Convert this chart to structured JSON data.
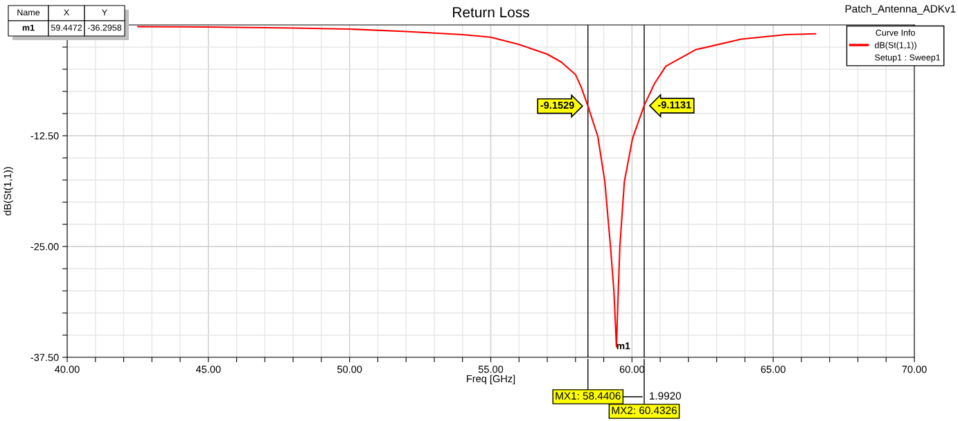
{
  "chart_data": {
    "type": "line",
    "title": "Return Loss",
    "xlabel": "Freq [GHz]",
    "ylabel": "dB(St(1,1))",
    "legend_title": "Curve Info",
    "x": [
      42.5,
      45,
      48,
      50,
      52,
      54,
      55,
      56,
      57,
      57.5,
      58,
      58.2,
      58.44,
      58.79,
      59.04,
      59.24,
      59.36,
      59.45,
      59.49,
      59.57,
      59.73,
      60.02,
      60.43,
      60.8,
      61.2,
      62.25,
      63.87,
      65.45,
      66.5
    ],
    "series": [
      {
        "name": "dB(St(1,1))",
        "color": "#ff0000",
        "values": [
          -0.2,
          -0.23,
          -0.35,
          -0.47,
          -0.74,
          -1.1,
          -1.38,
          -2.2,
          -3.3,
          -4.2,
          -5.6,
          -7.0,
          -9.15,
          -12.58,
          -17.7,
          -25.05,
          -30.0,
          -36.3,
          -32.3,
          -25.05,
          -17.7,
          -12.8,
          -9.11,
          -6.6,
          -4.66,
          -2.8,
          -1.6,
          -1.09,
          -1.0
        ]
      }
    ],
    "xlim": [
      40,
      70
    ],
    "ylim": [
      -37.5,
      0
    ],
    "xticks": [
      {
        "value": 40,
        "label": "40.00"
      },
      {
        "value": 41,
        "label": null
      },
      {
        "value": 42,
        "label": null
      },
      {
        "value": 43,
        "label": null
      },
      {
        "value": 44,
        "label": null
      },
      {
        "value": 45,
        "label": "45.00"
      },
      {
        "value": 46,
        "label": null
      },
      {
        "value": 47,
        "label": null
      },
      {
        "value": 48,
        "label": null
      },
      {
        "value": 49,
        "label": null
      },
      {
        "value": 50,
        "label": "50.00"
      },
      {
        "value": 51,
        "label": null
      },
      {
        "value": 52,
        "label": null
      },
      {
        "value": 53,
        "label": null
      },
      {
        "value": 54,
        "label": null
      },
      {
        "value": 55,
        "label": "55.00"
      },
      {
        "value": 56,
        "label": null
      },
      {
        "value": 57,
        "label": null
      },
      {
        "value": 58,
        "label": null
      },
      {
        "value": 59,
        "label": null
      },
      {
        "value": 60,
        "label": "60.00"
      },
      {
        "value": 61,
        "label": null
      },
      {
        "value": 62,
        "label": null
      },
      {
        "value": 63,
        "label": null
      },
      {
        "value": 64,
        "label": null
      },
      {
        "value": 65,
        "label": "65.00"
      },
      {
        "value": 66,
        "label": null
      },
      {
        "value": 67,
        "label": null
      },
      {
        "value": 68,
        "label": null
      },
      {
        "value": 69,
        "label": null
      },
      {
        "value": 70,
        "label": "70.00"
      }
    ],
    "yticks": [
      {
        "value": -37.5,
        "label": "-37.50"
      },
      {
        "value": -35,
        "label": null
      },
      {
        "value": -32.5,
        "label": null
      },
      {
        "value": -30,
        "label": null
      },
      {
        "value": -27.5,
        "label": null
      },
      {
        "value": -25,
        "label": "-25.00"
      },
      {
        "value": -22.5,
        "label": null
      },
      {
        "value": -20,
        "label": null
      },
      {
        "value": -17.5,
        "label": null
      },
      {
        "value": -15,
        "label": null
      },
      {
        "value": -12.5,
        "label": "-12.50"
      },
      {
        "value": -10,
        "label": null
      },
      {
        "value": -7.5,
        "label": null
      },
      {
        "value": -5,
        "label": null
      },
      {
        "value": -2.5,
        "label": null
      }
    ],
    "grid": true,
    "legend": "top right",
    "marker": "none",
    "line_style": "solid",
    "ref_lines": [
      {
        "axis": "x",
        "value": 58.4406,
        "label": "MX1: 58.4406",
        "color": "#000000"
      },
      {
        "axis": "x",
        "value": 60.4326,
        "label": "MX2: 60.4326",
        "color": "#000000"
      }
    ],
    "annotations": [
      "Name",
      "X",
      "Y",
      "m1",
      "59.4472",
      "-36.2958",
      "Patch_Antenna_ADKv1",
      "Setup1 : Sweep1",
      "1.9920",
      {
        "text": "-9.1529",
        "x": 58.4406,
        "y": -9.1529
      },
      {
        "text": "-9.1131",
        "x": 60.4326,
        "y": -9.1131
      },
      {
        "text": "m1",
        "x": 59.4472,
        "y": -36.2958
      }
    ]
  }
}
